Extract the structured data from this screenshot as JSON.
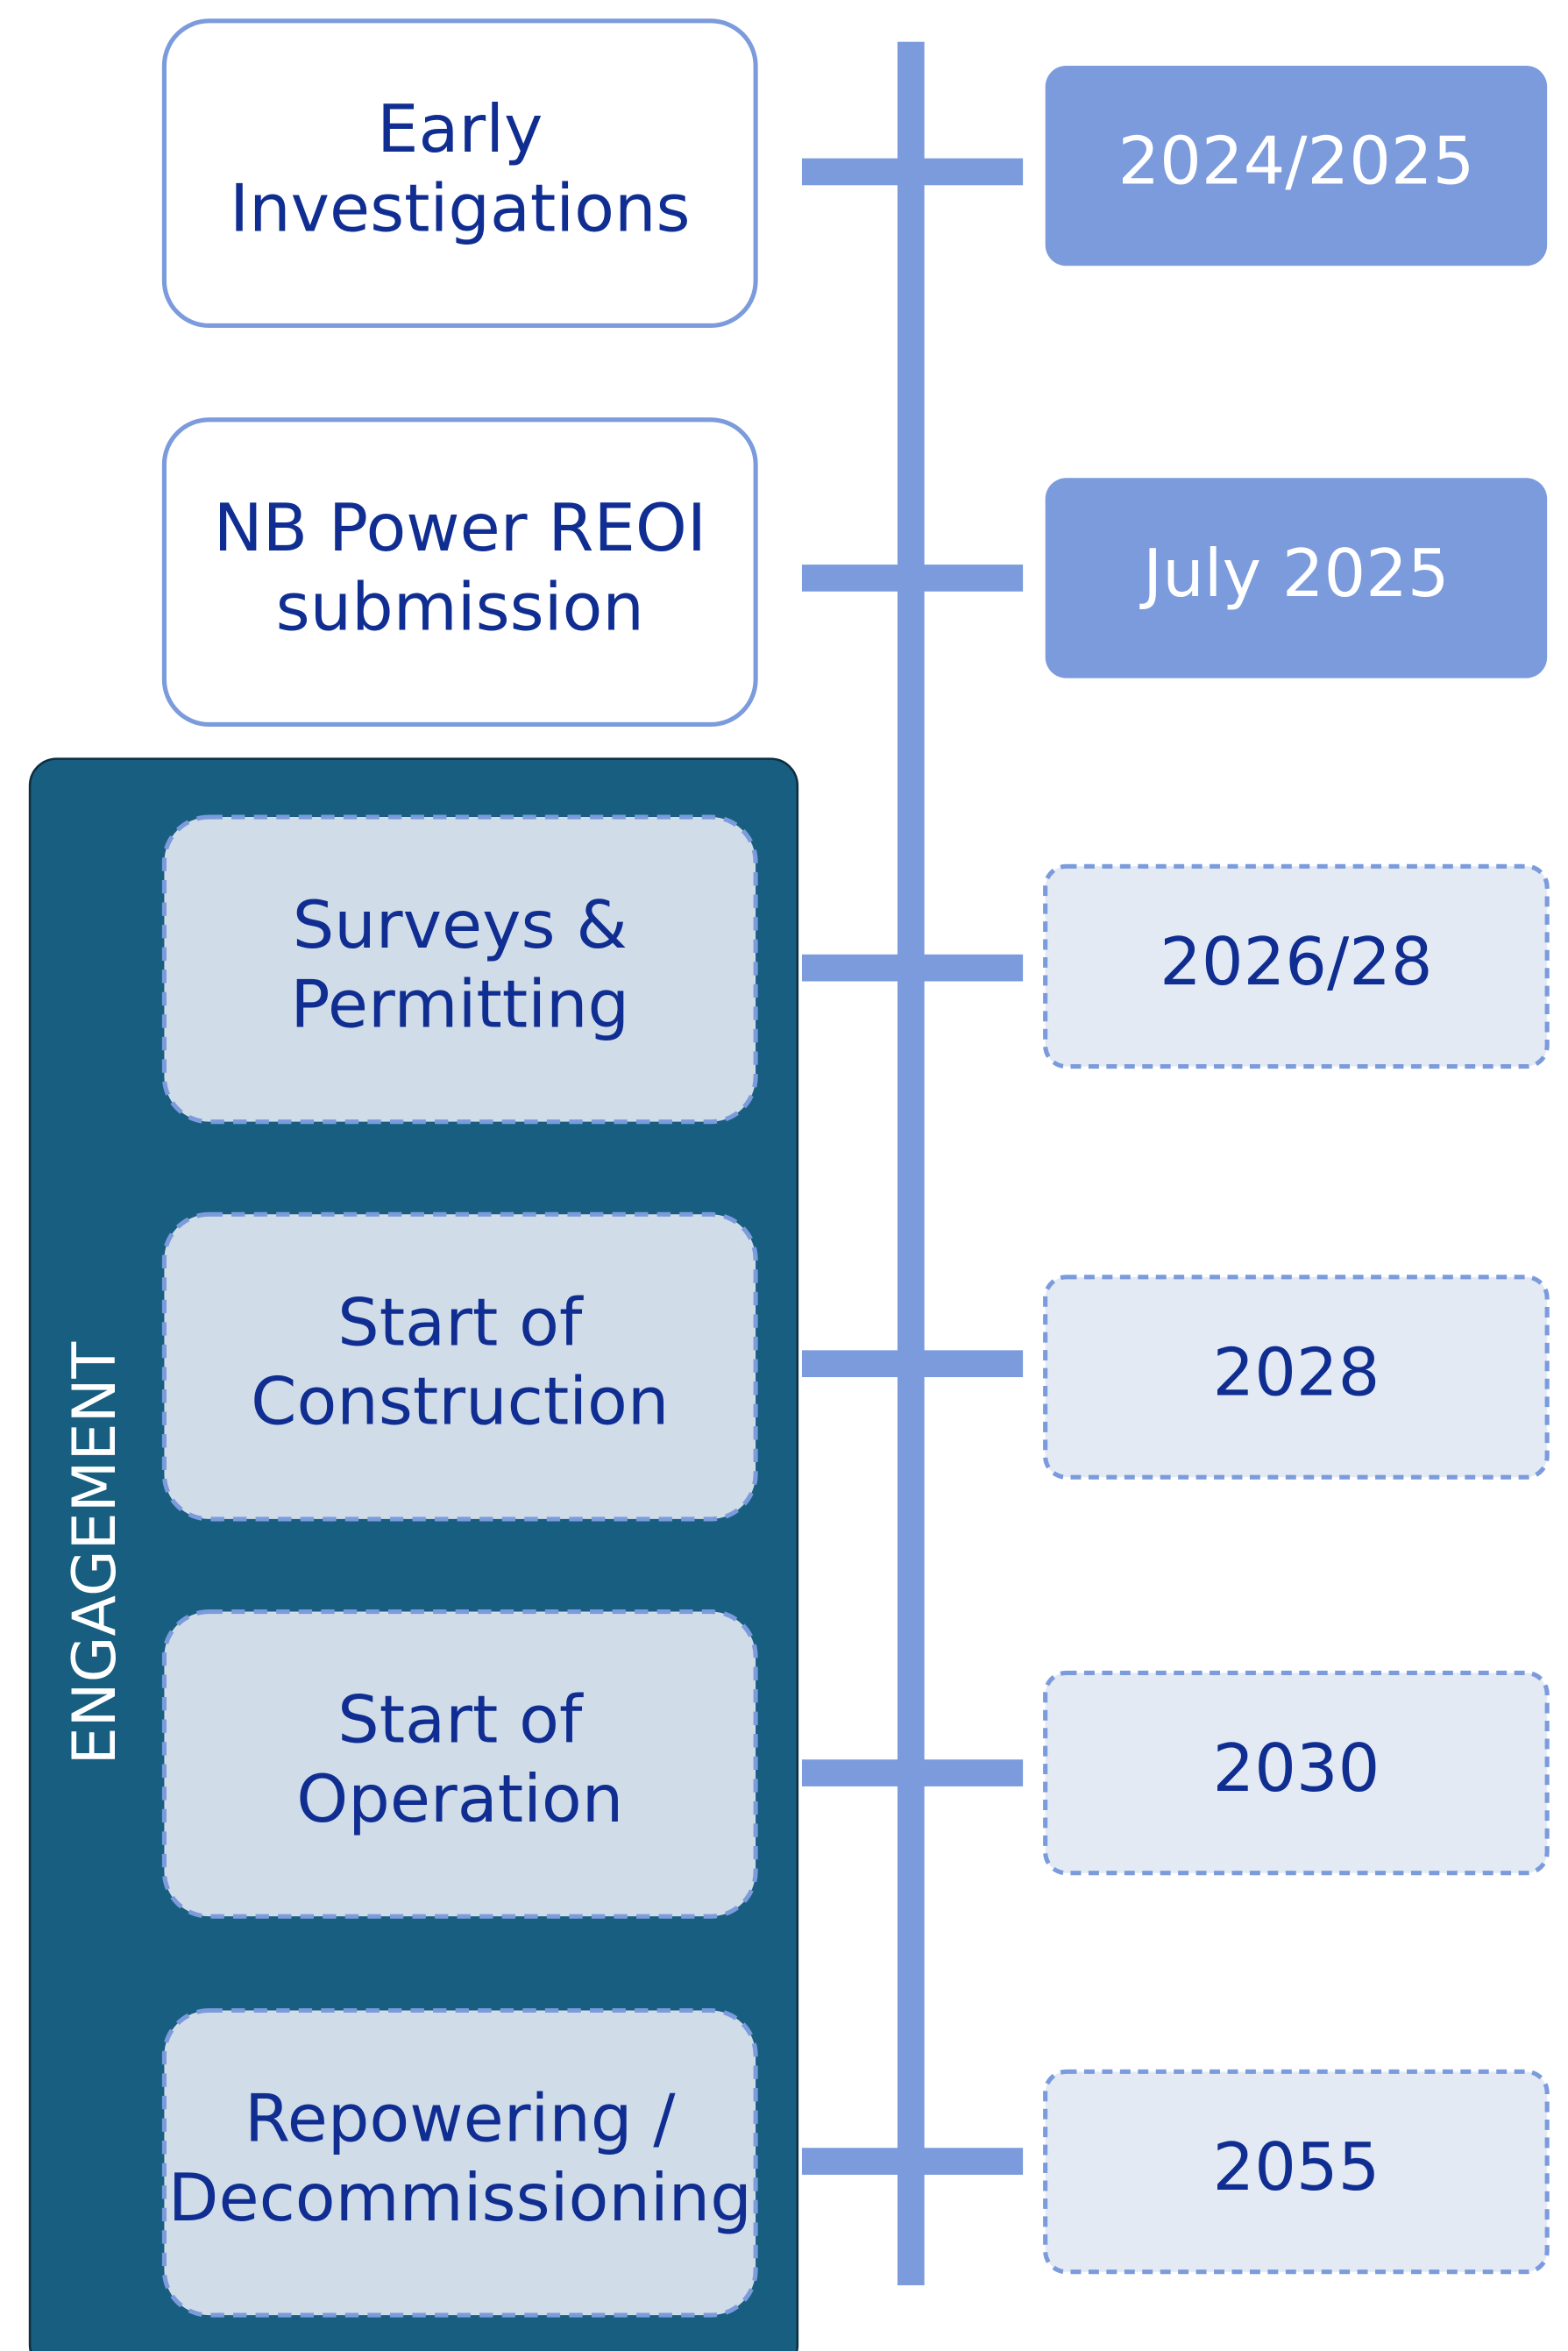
{
  "engagement_label": "ENGAGEMENT",
  "stages": [
    {
      "label_lines": [
        "Early",
        "Investigations"
      ],
      "date": "2024/2025",
      "status": "done"
    },
    {
      "label_lines": [
        "NB Power REOI",
        "submission"
      ],
      "date": "July 2025",
      "status": "done"
    },
    {
      "label_lines": [
        "Surveys &",
        "Permitting"
      ],
      "date": "2026/28",
      "status": "planned"
    },
    {
      "label_lines": [
        "Start of",
        "Construction"
      ],
      "date": "2028",
      "status": "planned"
    },
    {
      "label_lines": [
        "Start of",
        "Operation"
      ],
      "date": "2030",
      "status": "planned"
    },
    {
      "label_lines": [
        "Repowering /",
        "Decommissioning"
      ],
      "date": "2055",
      "status": "planned"
    }
  ]
}
